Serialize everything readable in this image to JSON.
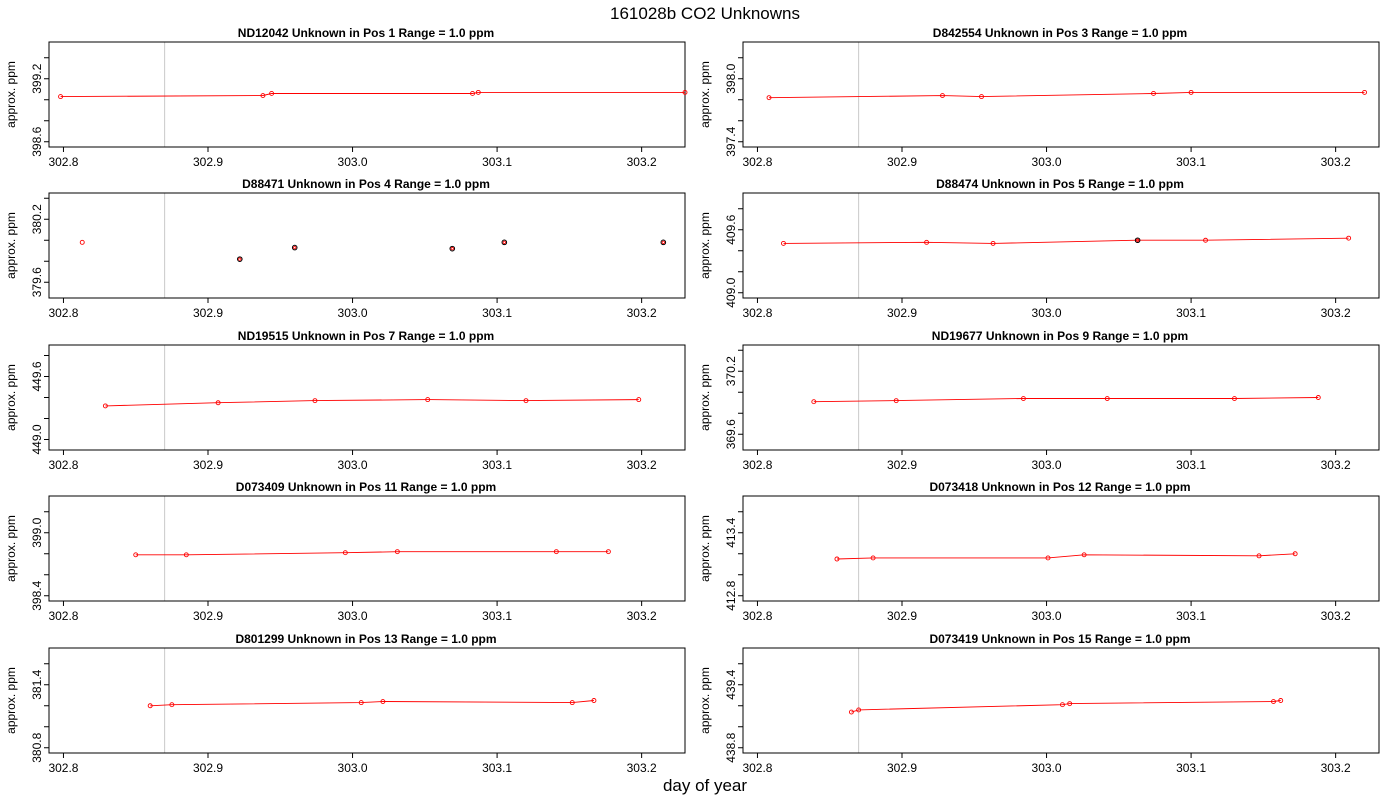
{
  "figure": {
    "title": "161028b  CO2 Unknowns",
    "xlabel": "day of year",
    "ylabel": "approx. ppm"
  },
  "chart_data": [
    {
      "type": "line",
      "title": "ND12042    Unknown in Pos 1         Range = 1.0 ppm",
      "xlabel": "day of year",
      "ylabel": "approx. ppm",
      "xlim": [
        302.79,
        303.23
      ],
      "xticks": [
        "302.8",
        "302.9",
        "303.0",
        "303.1",
        "303.2"
      ],
      "ylim": [
        398.55,
        399.55
      ],
      "yticks": [
        "398.6",
        "399.2"
      ],
      "vlines": [
        302.87,
        303.23
      ],
      "series": [
        {
          "x": [
            302.798,
            302.938,
            302.944,
            303.083,
            303.087,
            303.23
          ],
          "y": [
            399.03,
            399.04,
            399.06,
            399.06,
            399.07,
            399.07
          ]
        }
      ],
      "black_points": []
    },
    {
      "type": "line",
      "title": "D842554    Unknown in Pos 3         Range = 1.0 ppm",
      "xlabel": "day of year",
      "ylabel": "approx. ppm",
      "xlim": [
        302.79,
        303.23
      ],
      "xticks": [
        "302.8",
        "302.9",
        "303.0",
        "303.1",
        "303.2"
      ],
      "ylim": [
        397.35,
        398.35
      ],
      "yticks": [
        "397.4",
        "398.0"
      ],
      "vlines": [
        302.87,
        303.23
      ],
      "series": [
        {
          "x": [
            302.808,
            302.928,
            302.955,
            303.074,
            303.1,
            303.22
          ],
          "y": [
            397.82,
            397.84,
            397.83,
            397.86,
            397.87,
            397.87
          ]
        }
      ],
      "black_points": []
    },
    {
      "type": "scatter",
      "title": "D88471    Unknown in Pos 4         Range = 1.0 ppm",
      "xlabel": "day of year",
      "ylabel": "approx. ppm",
      "xlim": [
        302.79,
        303.23
      ],
      "xticks": [
        "302.8",
        "302.9",
        "303.0",
        "303.1",
        "303.2"
      ],
      "ylim": [
        379.45,
        380.45
      ],
      "yticks": [
        "379.6",
        "380.2"
      ],
      "vlines": [
        302.87,
        303.23
      ],
      "series": [
        {
          "x": [
            302.813,
            302.922,
            302.96,
            303.069,
            303.105,
            303.215
          ],
          "y": [
            379.98,
            379.82,
            379.93,
            379.92,
            379.98,
            379.98
          ]
        }
      ],
      "black_points": [
        1,
        2,
        3,
        4,
        5
      ]
    },
    {
      "type": "line",
      "title": "D88474    Unknown in Pos 5         Range = 1.0 ppm",
      "xlabel": "day of year",
      "ylabel": "approx. ppm",
      "xlim": [
        302.79,
        303.23
      ],
      "xticks": [
        "302.8",
        "302.9",
        "303.0",
        "303.1",
        "303.2"
      ],
      "ylim": [
        408.95,
        409.95
      ],
      "yticks": [
        "409.0",
        "409.6"
      ],
      "vlines": [
        302.87,
        303.23
      ],
      "series": [
        {
          "x": [
            302.818,
            302.917,
            302.963,
            303.063,
            303.11,
            303.209
          ],
          "y": [
            409.47,
            409.48,
            409.47,
            409.5,
            409.5,
            409.52
          ]
        }
      ],
      "black_points": [
        3
      ]
    },
    {
      "type": "line",
      "title": "ND19515    Unknown in Pos 7         Range = 1.0 ppm",
      "xlabel": "day of year",
      "ylabel": "approx. ppm",
      "xlim": [
        302.79,
        303.23
      ],
      "xticks": [
        "302.8",
        "302.9",
        "303.0",
        "303.1",
        "303.2"
      ],
      "ylim": [
        448.9,
        449.9
      ],
      "yticks": [
        "449.0",
        "449.6"
      ],
      "vlines": [
        302.87,
        303.23
      ],
      "series": [
        {
          "x": [
            302.829,
            302.907,
            302.974,
            303.052,
            303.12,
            303.198
          ],
          "y": [
            449.32,
            449.35,
            449.37,
            449.38,
            449.37,
            449.38
          ]
        }
      ],
      "black_points": []
    },
    {
      "type": "line",
      "title": "ND19677    Unknown in Pos 9         Range = 1.0 ppm",
      "xlabel": "day of year",
      "ylabel": "approx. ppm",
      "xlim": [
        302.79,
        303.23
      ],
      "xticks": [
        "302.8",
        "302.9",
        "303.0",
        "303.1",
        "303.2"
      ],
      "ylim": [
        369.45,
        370.45
      ],
      "yticks": [
        "369.6",
        "370.2"
      ],
      "vlines": [
        302.87,
        303.23
      ],
      "series": [
        {
          "x": [
            302.839,
            302.896,
            302.984,
            303.042,
            303.13,
            303.188
          ],
          "y": [
            369.91,
            369.92,
            369.94,
            369.94,
            369.94,
            369.95
          ]
        }
      ],
      "black_points": []
    },
    {
      "type": "line",
      "title": "D073409    Unknown in Pos 11         Range = 1.0 ppm",
      "xlabel": "day of year",
      "ylabel": "approx. ppm",
      "xlim": [
        302.79,
        303.23
      ],
      "xticks": [
        "302.8",
        "302.9",
        "303.0",
        "303.1",
        "303.2"
      ],
      "ylim": [
        398.35,
        399.35
      ],
      "yticks": [
        "398.4",
        "399.0"
      ],
      "vlines": [
        302.87,
        303.23
      ],
      "series": [
        {
          "x": [
            302.85,
            302.885,
            302.995,
            303.031,
            303.141,
            303.177
          ],
          "y": [
            398.79,
            398.79,
            398.81,
            398.82,
            398.82,
            398.82
          ]
        }
      ],
      "black_points": []
    },
    {
      "type": "line",
      "title": "D073418    Unknown in Pos 12         Range = 1.0 ppm",
      "xlabel": "day of year",
      "ylabel": "approx. ppm",
      "xlim": [
        302.79,
        303.23
      ],
      "xticks": [
        "302.8",
        "302.9",
        "303.0",
        "303.1",
        "303.2"
      ],
      "ylim": [
        412.75,
        413.75
      ],
      "yticks": [
        "412.8",
        "413.4"
      ],
      "vlines": [
        302.87,
        303.23
      ],
      "series": [
        {
          "x": [
            302.855,
            302.88,
            303.001,
            303.026,
            303.147,
            303.172
          ],
          "y": [
            413.15,
            413.16,
            413.16,
            413.19,
            413.18,
            413.2
          ]
        }
      ],
      "black_points": []
    },
    {
      "type": "line",
      "title": "D801299    Unknown in Pos 13         Range = 1.0 ppm",
      "xlabel": "day of year",
      "ylabel": "approx. ppm",
      "xlim": [
        302.79,
        303.23
      ],
      "xticks": [
        "302.8",
        "302.9",
        "303.0",
        "303.1",
        "303.2"
      ],
      "ylim": [
        380.75,
        381.75
      ],
      "yticks": [
        "380.8",
        "381.4"
      ],
      "vlines": [
        302.87,
        303.23
      ],
      "series": [
        {
          "x": [
            302.86,
            302.875,
            303.006,
            303.021,
            303.152,
            303.167
          ],
          "y": [
            381.2,
            381.21,
            381.23,
            381.24,
            381.23,
            381.25
          ]
        }
      ],
      "black_points": []
    },
    {
      "type": "line",
      "title": "D073419    Unknown in Pos 15         Range = 1.0 ppm",
      "xlabel": "day of year",
      "ylabel": "approx. ppm",
      "xlim": [
        302.79,
        303.23
      ],
      "xticks": [
        "302.8",
        "302.9",
        "303.0",
        "303.1",
        "303.2"
      ],
      "ylim": [
        438.75,
        439.75
      ],
      "yticks": [
        "438.8",
        "439.4"
      ],
      "vlines": [
        302.87,
        303.23
      ],
      "series": [
        {
          "x": [
            302.865,
            302.87,
            303.011,
            303.016,
            303.157,
            303.162
          ],
          "y": [
            439.14,
            439.16,
            439.21,
            439.22,
            439.24,
            439.25
          ]
        }
      ],
      "black_points": []
    }
  ]
}
